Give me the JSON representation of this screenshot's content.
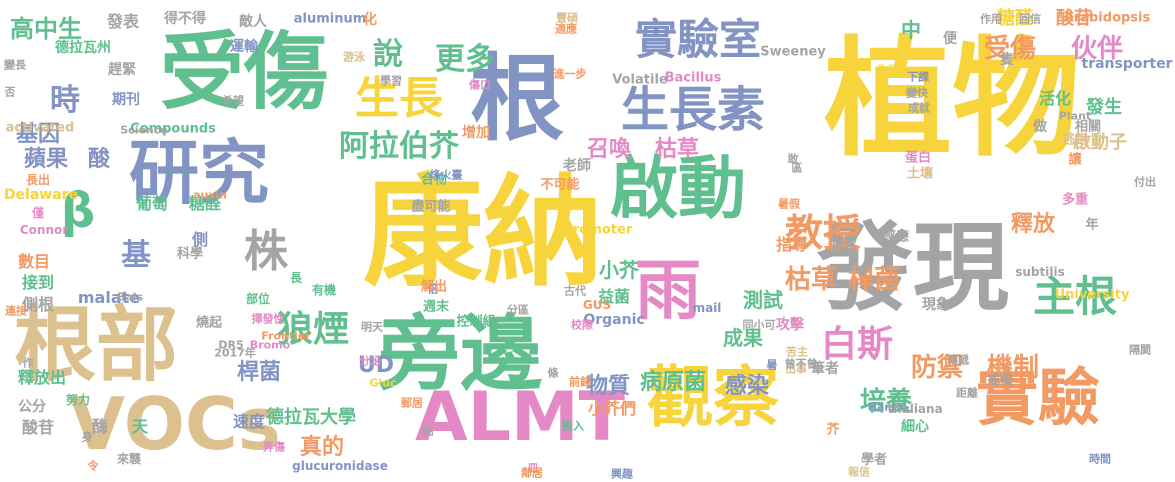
{
  "palette": {
    "yellow": "#f7d43c",
    "orange": "#f29a63",
    "green": "#5fbf8f",
    "blue": "#8294c4",
    "pink": "#e589c6",
    "tan": "#dcc08e",
    "gray": "#a4a4a4",
    "lime": "#b7d35c"
  },
  "words": [
    "植物",
    "康納",
    "發現",
    "受傷",
    "旁邊",
    "根部",
    "VOCs",
    "ALMT",
    "觀察",
    "實驗",
    "根",
    "啟動",
    "研究",
    "雨",
    "生長素",
    "實驗室",
    "生長",
    "主根",
    "β",
    "株",
    "教授",
    "白斯",
    "狼煙",
    "阿拉伯芥",
    "更多",
    "說",
    "基",
    "時",
    "高中生",
    "受傷",
    "伙伴",
    "枯草",
    "桿菌",
    "培養",
    "防禦",
    "機制",
    "物質",
    "病原菌",
    "感染",
    "釋放",
    "小芥",
    "成果",
    "測試",
    "糖醛",
    "酸苷",
    "召喚",
    "枯草",
    "UD",
    "真的",
    "蘋果",
    "酸",
    "桿菌",
    "基因",
    "中",
    "活化",
    "啟動子",
    "發生",
    "德拉瓦大學",
    "葡萄",
    "糖醛",
    "數目",
    "接到",
    "側根",
    "釋放出",
    "酸苷",
    "酶",
    "速度",
    "天",
    "公分",
    "側",
    "科學",
    "小芥們",
    "筆者",
    "益菌",
    "現象",
    "malate",
    "Delaware",
    "promoter",
    "Organic",
    "subtilis",
    "University",
    "transporter",
    "Arabidopsis",
    "Sweeney",
    "Bacillus",
    "Volatile",
    "Compounds",
    "activated",
    "aluminum",
    "Science",
    "auxin",
    "Frontier",
    "Harsh",
    "thaliana",
    "Connor",
    "glucuronidase",
    "Bais",
    "Plant",
    "DR5",
    "GUS",
    "mail",
    "Gluc",
    "2017年",
    "Bromo",
    "發表",
    "得不得",
    "敵人",
    "運輸",
    "期刊",
    "趕緊",
    "德拉瓦州",
    "變長",
    "否",
    "希望",
    "學習",
    "老師",
    "指導",
    "攻擊",
    "信號",
    "寫",
    "作用",
    "回信",
    "生活",
    "下課",
    "變快",
    "成就",
    "相關",
    "蛋白",
    "土壤",
    "付出",
    "出事",
    "苦主",
    "傳遞",
    "隔閡",
    "時間",
    "細心",
    "感應",
    "戒備",
    "學者",
    "距離",
    "逃跑",
    "讓",
    "多重",
    "年",
    "做",
    "便",
    "隻",
    "化",
    "增加",
    "合物",
    "不可能",
    "盡可能",
    "進一步",
    "校際",
    "烽火臺",
    "長出",
    "僅",
    "努力",
    "來襲",
    "弄傷",
    "倍",
    "部位",
    "有機",
    "長",
    "擇發性",
    "分區",
    "控制組",
    "解出",
    "週末",
    "明天",
    "古代",
    "分泌",
    "同小可",
    "敢",
    "區",
    "暑假",
    "曾不曾",
    "條",
    "鋁",
    "前鋒",
    "投入",
    "興趣",
    "郵居",
    "皿",
    "鄰居",
    "芥",
    "作",
    "令",
    "身",
    "連接",
    "燒起",
    "豐碩",
    "傷口",
    "適應",
    "游泳",
    "暑",
    "報信",
    "交換"
  ]
}
